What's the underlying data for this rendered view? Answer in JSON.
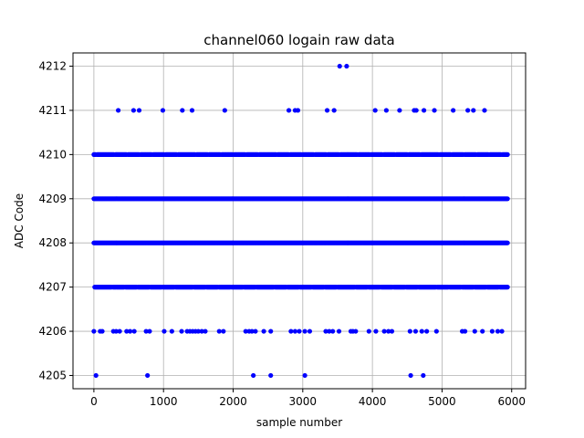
{
  "chart_data": {
    "type": "scatter",
    "title": "channel060 logain raw data",
    "xlabel": "sample number",
    "ylabel": "ADC Code",
    "xlim": [
      -300,
      6200
    ],
    "ylim": [
      4204.7,
      4212.3
    ],
    "xticks": [
      0,
      1000,
      2000,
      3000,
      4000,
      5000,
      6000
    ],
    "yticks": [
      4205,
      4206,
      4207,
      4208,
      4209,
      4210,
      4211,
      4212
    ],
    "grid": true,
    "marker_color": "#0000ff",
    "sample_count": 5950,
    "dense_levels": [
      4207,
      4208,
      4209,
      4210
    ],
    "series": [
      {
        "level": 4212,
        "x": [
          3530,
          3630
        ]
      },
      {
        "level": 4211,
        "x": [
          350,
          570,
          650,
          990,
          1270,
          1410,
          1880,
          2800,
          2890,
          2930,
          3350,
          3450,
          4040,
          4200,
          4390,
          4600,
          4630,
          4740,
          4890,
          5160,
          5370,
          5450,
          5610
        ]
      },
      {
        "level": 4206,
        "x": [
          0,
          90,
          120,
          280,
          320,
          370,
          470,
          520,
          580,
          750,
          800,
          1010,
          1120,
          1260,
          1340,
          1380,
          1420,
          1460,
          1500,
          1550,
          1600,
          1800,
          1860,
          2180,
          2230,
          2270,
          2320,
          2440,
          2540,
          2830,
          2890,
          2950,
          3030,
          3100,
          3330,
          3380,
          3430,
          3520,
          3690,
          3720,
          3760,
          3950,
          4050,
          4170,
          4230,
          4280,
          4540,
          4620,
          4710,
          4780,
          4920,
          5290,
          5330,
          5470,
          5580,
          5720,
          5800,
          5860
        ]
      },
      {
        "level": 4205,
        "x": [
          30,
          770,
          2290,
          2540,
          3030,
          4550,
          4730
        ]
      }
    ]
  }
}
